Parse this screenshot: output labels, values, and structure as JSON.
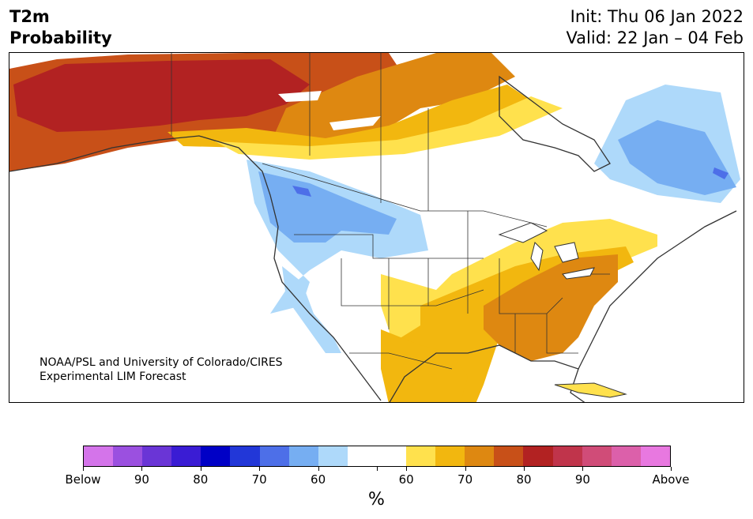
{
  "header": {
    "title_line1": "T2m",
    "title_line2": "Probability",
    "init": "Init: Thu 06 Jan 2022",
    "valid": "Valid: 22 Jan – 04 Feb"
  },
  "map": {
    "credit_line1": "NOAA/PSL and University of Colorado/CIRES",
    "credit_line2": "Experimental LIM Forecast",
    "regions": [
      {
        "name": "Alaska",
        "category": "above-80",
        "color": "#b22222"
      },
      {
        "name": "Yukon / Northwest Territories",
        "category": "above-70",
        "color": "#c85018"
      },
      {
        "name": "Hudson Bay west",
        "category": "above-60",
        "color": "#f2b70f"
      },
      {
        "name": "Pacific Northwest",
        "category": "below-70",
        "color": "#76aef2"
      },
      {
        "name": "Labrador / Quebec",
        "category": "below-60",
        "color": "#aed9fa"
      },
      {
        "name": "Southeast US",
        "category": "above-70",
        "color": "#de8811"
      },
      {
        "name": "Texas / Mexico",
        "category": "above-60",
        "color": "#f2b70f"
      }
    ]
  },
  "colorbar": {
    "colors": [
      "#d474ea",
      "#9b50e0",
      "#6a35d6",
      "#3a1cd4",
      "#0000c6",
      "#2237d8",
      "#4d6fe8",
      "#76aef2",
      "#aed9fa",
      "#ffffff",
      "#ffffff",
      "#ffe14d",
      "#f2b70f",
      "#de8811",
      "#c85018",
      "#b22222",
      "#c0344b",
      "#d04c78",
      "#dc60aa",
      "#e878e0"
    ],
    "labels": [
      "Below",
      "90",
      "80",
      "70",
      "60",
      "60",
      "70",
      "80",
      "90",
      "Above"
    ],
    "units": "%"
  }
}
